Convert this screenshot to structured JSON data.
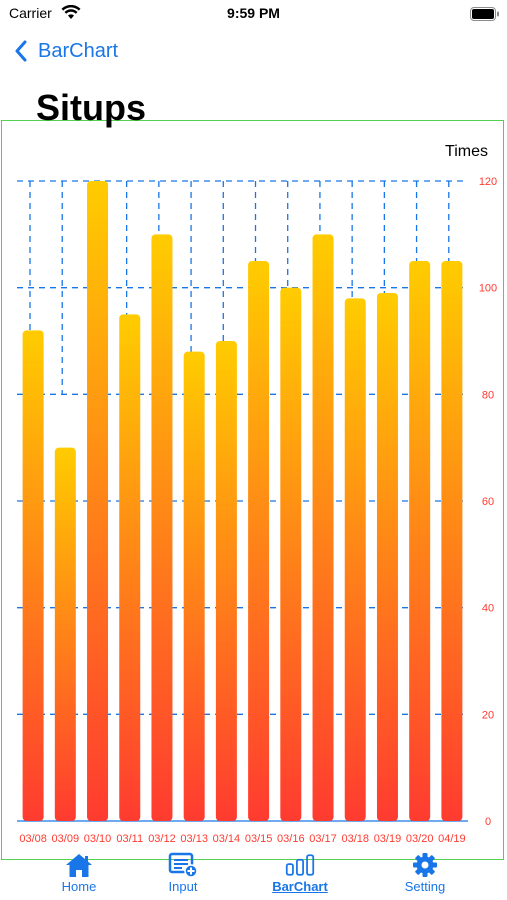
{
  "status_bar": {
    "carrier": "Carrier",
    "time": "9:59 PM"
  },
  "nav": {
    "back_label": "BarChart"
  },
  "page": {
    "title": "Situps"
  },
  "colors": {
    "accent": "#1976e8",
    "bar_top": "#ffcc00",
    "bar_bottom": "#ff3b30",
    "axis_text": "#ff3b30",
    "grid": "#1976e8",
    "frame": "#54d04f"
  },
  "chart_data": {
    "type": "bar",
    "ylabel": "Times",
    "categories": [
      "03/08",
      "03/09",
      "03/10",
      "03/11",
      "03/12",
      "03/13",
      "03/14",
      "03/15",
      "03/16",
      "03/17",
      "03/18",
      "03/19",
      "03/20",
      "04/19"
    ],
    "values": [
      92,
      70,
      120,
      95,
      110,
      88,
      90,
      105,
      100,
      110,
      98,
      99,
      105,
      105
    ],
    "ylim": [
      0,
      120
    ],
    "yticks": [
      0,
      20,
      40,
      60,
      80,
      100,
      120
    ],
    "grid": true,
    "y_axis_side": "right"
  },
  "tabs": [
    {
      "label": "Home",
      "icon": "house-icon",
      "active": false
    },
    {
      "label": "Input",
      "icon": "form-add-icon",
      "active": false
    },
    {
      "label": "BarChart",
      "icon": "bar-chart-icon",
      "active": true
    },
    {
      "label": "Setting",
      "icon": "gear-icon",
      "active": false
    }
  ]
}
